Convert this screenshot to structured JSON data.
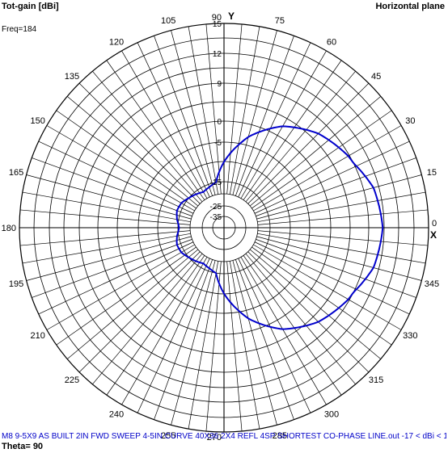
{
  "header": {
    "title_left": "Tot-gain [dBi]",
    "title_right": "Horizontal plane",
    "freq": "Freq=184"
  },
  "footer": {
    "file_line": "M8 9-5X9 AS BUILT 2IN FWD SWEEP 4-5IN CURVE 40X36 2X4 REFL 4SP SHORTEST CO-PHASE LINE.out   -17 < dBi < 10.4",
    "theta": "Theta= 90"
  },
  "colors": {
    "trace": "#0000cc",
    "grid": "#000000"
  },
  "chart_data": {
    "type": "polar",
    "angle_unit": "degrees",
    "angle_ticks": [
      0,
      15,
      30,
      45,
      60,
      75,
      90,
      105,
      120,
      135,
      150,
      165,
      180,
      195,
      210,
      225,
      240,
      255,
      270,
      285,
      300,
      315,
      330,
      345
    ],
    "angle_tick_labels": [
      "0",
      "15",
      "30",
      "45",
      "60",
      "75",
      "90",
      "105",
      "120",
      "135",
      "150",
      "165",
      "180",
      "195",
      "210",
      "225",
      "240",
      "255",
      "270",
      "285",
      "300",
      "315",
      "330",
      "345"
    ],
    "radial_ticks": [
      15,
      12,
      9,
      0,
      -5,
      -15,
      -25,
      -35
    ],
    "radial_tick_labels": [
      "15",
      "12",
      "9",
      "0",
      "-5",
      "-15",
      "-25",
      "-35"
    ],
    "axis_labels": {
      "x": "X",
      "y": "Y"
    },
    "series": [
      {
        "angles": [
          0,
          15,
          30,
          45,
          60,
          75,
          90,
          100,
          110,
          120,
          130,
          140,
          150,
          160,
          170,
          180,
          190,
          200,
          210,
          220,
          230,
          240,
          250,
          260,
          270,
          285,
          300,
          315,
          330,
          345,
          360
        ],
        "gain_dbi": [
          10.4,
          10.0,
          8.7,
          6.3,
          2.5,
          -3.0,
          -10.0,
          -15.0,
          -16.2,
          -17.0,
          -16.0,
          -15.0,
          -14.2,
          -14.0,
          -14.6,
          -15.5,
          -14.6,
          -14.0,
          -14.2,
          -15.0,
          -16.0,
          -17.0,
          -16.2,
          -15.0,
          -10.0,
          -3.0,
          2.5,
          6.3,
          8.7,
          10.0,
          10.4
        ]
      }
    ]
  }
}
